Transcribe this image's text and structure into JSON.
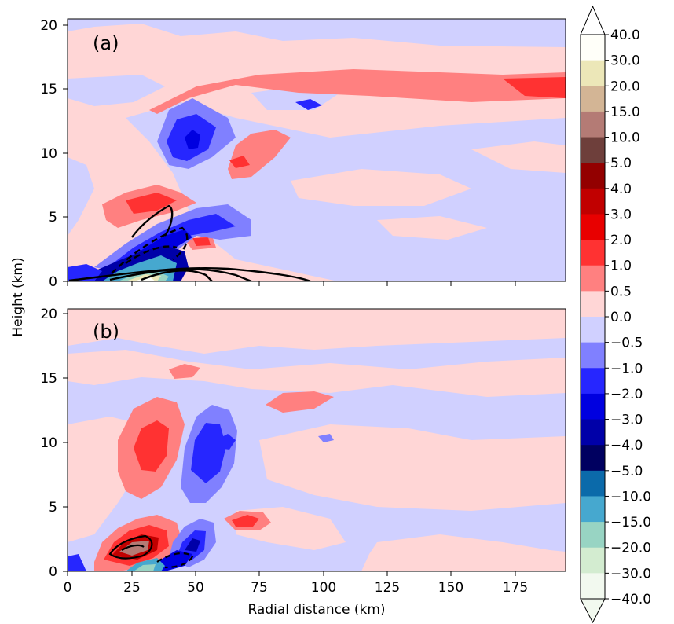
{
  "chart_data": [
    {
      "type": "heatmap",
      "panel_label": "(a)",
      "xlabel": "",
      "ylabel": "",
      "xlim": [
        0,
        195
      ],
      "ylim": [
        0,
        20.5
      ],
      "xticks": [
        0,
        25,
        50,
        75,
        100,
        125,
        150,
        175
      ],
      "yticks": [
        "0",
        "5",
        "10",
        "15",
        "20"
      ],
      "contours": "solid and dashed black contours near 20-95 km, 0-6 km height"
    },
    {
      "type": "heatmap",
      "panel_label": "(b)",
      "xlabel": "Radial distance (km)",
      "ylabel": "",
      "xlim": [
        0,
        195
      ],
      "ylim": [
        0,
        20.5
      ],
      "xticks": [
        "0",
        "25",
        "50",
        "75",
        "100",
        "125",
        "150",
        "175"
      ],
      "yticks": [
        "0",
        "5",
        "10",
        "15",
        "20"
      ],
      "contours": "solid and dashed black contours near 20-45 km, 0-3 km height"
    }
  ],
  "shared_ylabel": "Height (km)",
  "colorbar": {
    "levels": [
      "40.0",
      "30.0",
      "20.0",
      "15.0",
      "10.0",
      "5.0",
      "4.0",
      "3.0",
      "2.0",
      "1.0",
      "0.5",
      "0.0",
      "−0.5",
      "−1.0",
      "−2.0",
      "−3.0",
      "−4.0",
      "−5.0",
      "−10.0",
      "−15.0",
      "−20.0",
      "−30.0",
      "−40.0"
    ],
    "colors": [
      "#fffff9",
      "#ece7b8",
      "#d3b595",
      "#b47b75",
      "#6e3f3b",
      "#930000",
      "#c10000",
      "#e80000",
      "#ff3232",
      "#ff8080",
      "#ffd6d6",
      "#d0d0ff",
      "#8080ff",
      "#2626ff",
      "#0000e0",
      "#0000a8",
      "#000060",
      "#0b6aaa",
      "#46a8cf",
      "#98d4c3",
      "#d3ecd0",
      "#f2f9ef"
    ],
    "extend": "both"
  }
}
